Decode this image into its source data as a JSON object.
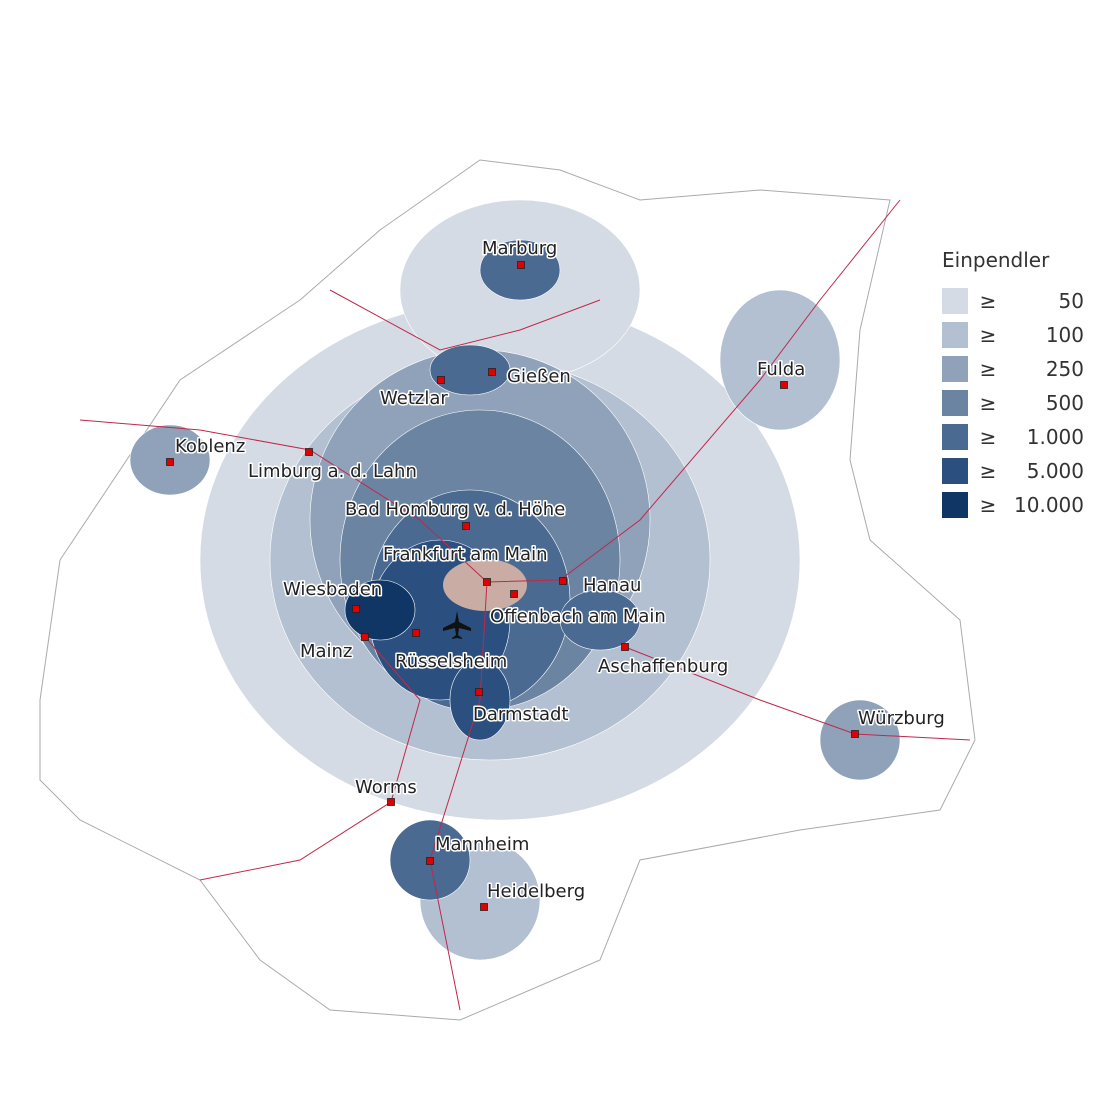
{
  "legend": {
    "title": "Einpendler",
    "symbol": "≥",
    "classes": [
      {
        "value": "50",
        "color": "#d5dbe4"
      },
      {
        "value": "100",
        "color": "#b3c0d1"
      },
      {
        "value": "250",
        "color": "#8fa2b9"
      },
      {
        "value": "500",
        "color": "#6a84a2"
      },
      {
        "value": "1.000",
        "color": "#4a6a91"
      },
      {
        "value": "5.000",
        "color": "#2b5080"
      },
      {
        "value": "10.000",
        "color": "#0f3664"
      }
    ]
  },
  "colors": {
    "frankfurt": "#c9aca4",
    "rail": "#c0284a",
    "city_marker": "#e00000",
    "outline": "#999999"
  },
  "cities": [
    {
      "name": "Marburg"
    },
    {
      "name": "Gießen"
    },
    {
      "name": "Wetzlar"
    },
    {
      "name": "Fulda"
    },
    {
      "name": "Koblenz"
    },
    {
      "name": "Limburg a. d. Lahn"
    },
    {
      "name": "Bad Homburg v. d. Höhe"
    },
    {
      "name": "Frankfurt am Main"
    },
    {
      "name": "Hanau"
    },
    {
      "name": "Offenbach am Main"
    },
    {
      "name": "Wiesbaden"
    },
    {
      "name": "Mainz"
    },
    {
      "name": "Rüsselsheim"
    },
    {
      "name": "Aschaffenburg"
    },
    {
      "name": "Darmstadt"
    },
    {
      "name": "Würzburg"
    },
    {
      "name": "Worms"
    },
    {
      "name": "Mannheim"
    },
    {
      "name": "Heidelberg"
    }
  ],
  "airport_icon": "airplane-icon"
}
